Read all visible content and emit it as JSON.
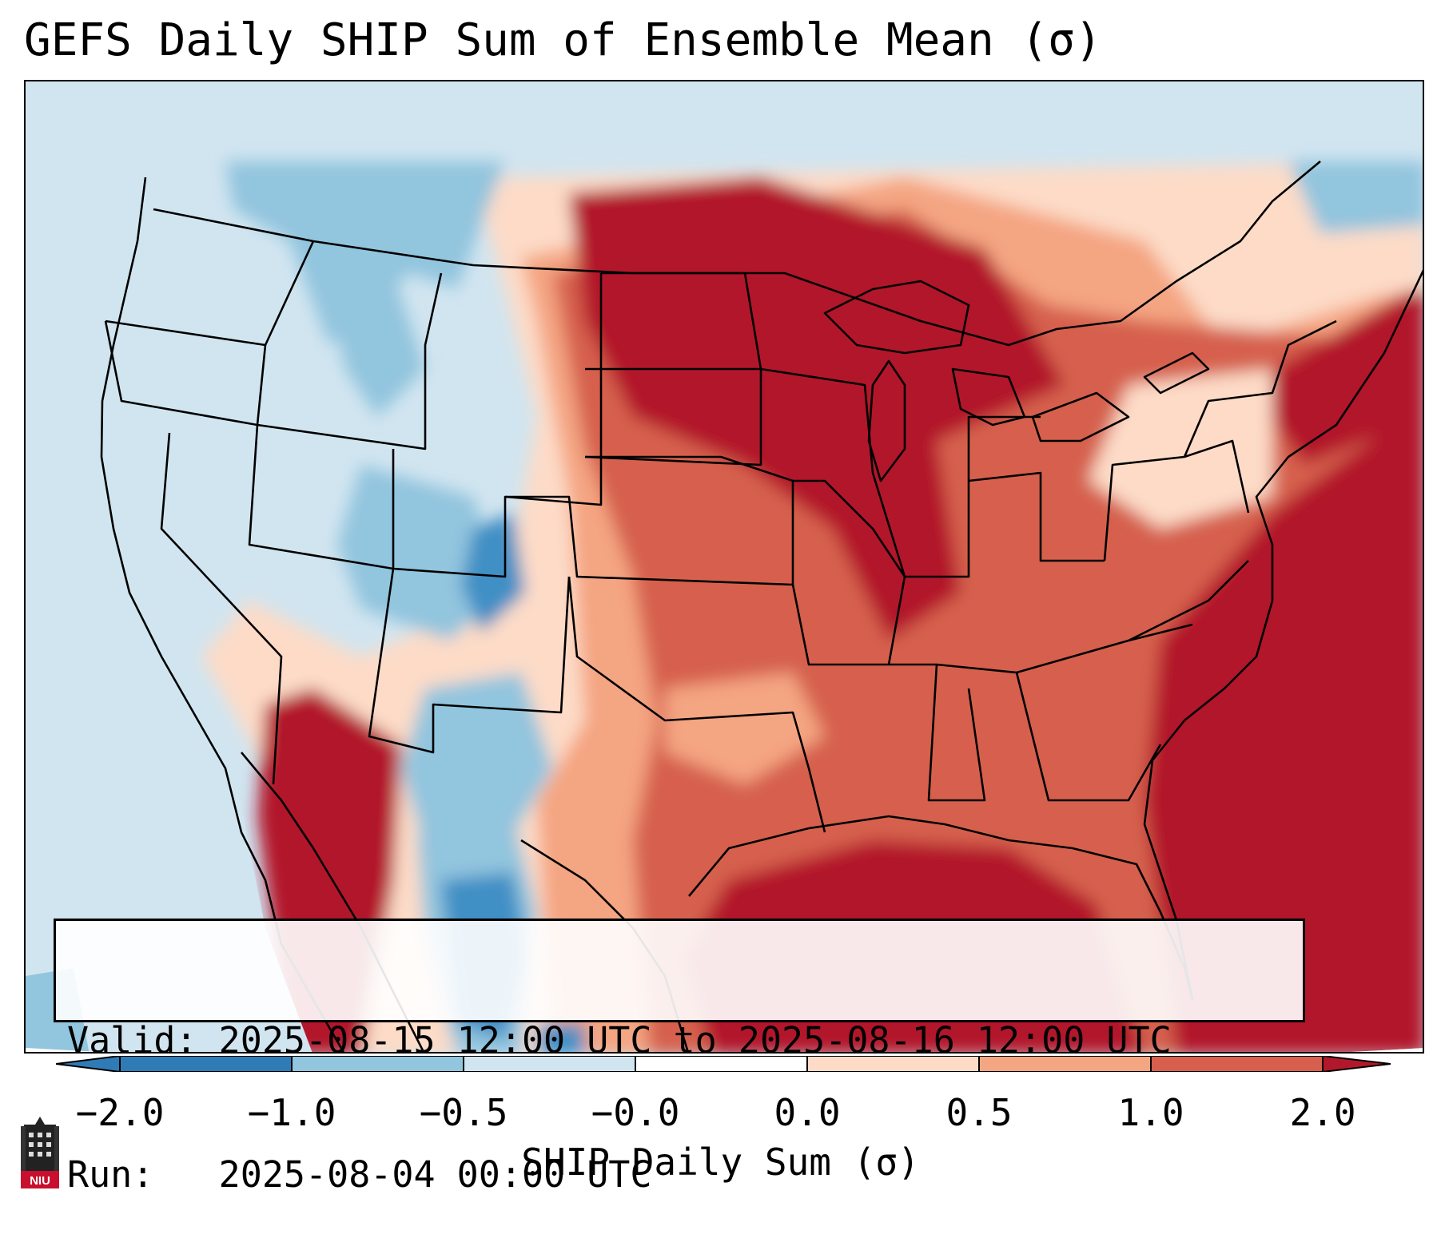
{
  "title": "GEFS Daily SHIP Sum of Ensemble Mean (σ)",
  "info": {
    "valid_line": "Valid: 2025-08-15 12:00 UTC to 2025-08-16 12:00 UTC",
    "run_line": "Run:   2025-08-04 00:00 UTC"
  },
  "colorbar": {
    "label": "SHIP Daily Sum (σ)",
    "ticks": [
      "−2.0",
      "−1.0",
      "−0.5",
      "−0.0",
      "0.0",
      "0.5",
      "1.0",
      "2.0"
    ],
    "colors": [
      "#2f7bb6",
      "#3f8fc5",
      "#92c5de",
      "#d1e5f0",
      "#ffffff",
      "#fddbc7",
      "#f4a582",
      "#d6604d",
      "#b2182b"
    ],
    "extend": "both"
  },
  "logo": {
    "text": "NIU",
    "icon": "niu-tower-logo-icon"
  }
}
